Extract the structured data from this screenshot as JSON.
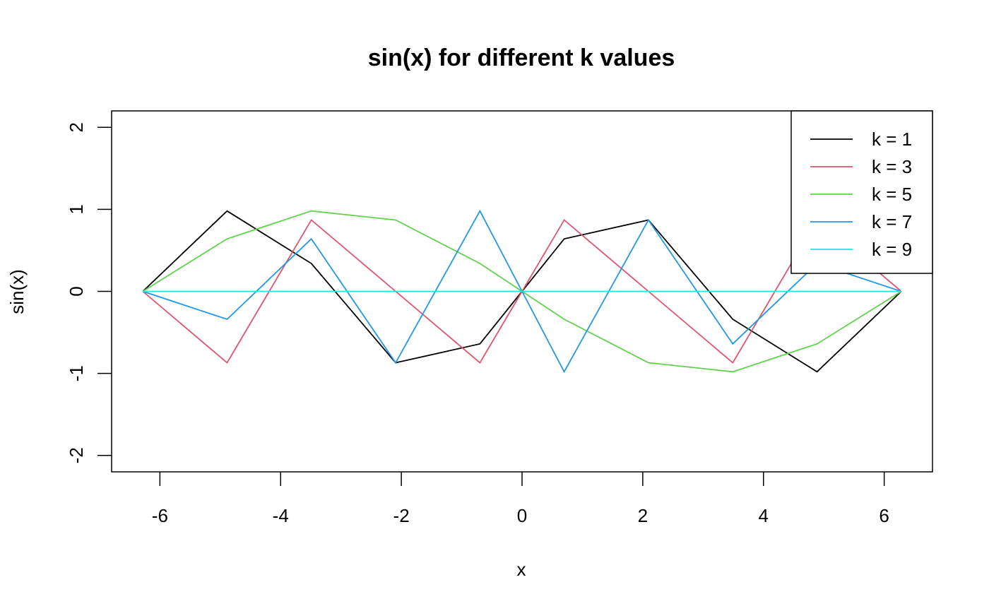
{
  "chart_data": {
    "type": "line",
    "title": "sin(x) for different k values",
    "xlabel": "x",
    "ylabel": "sin(x)",
    "xlim": [
      -6.8,
      6.8
    ],
    "ylim": [
      -2.2,
      2.2
    ],
    "xticks": [
      -6,
      -4,
      -2,
      0,
      2,
      4,
      6
    ],
    "yticks": [
      -2,
      -1,
      0,
      1,
      2
    ],
    "xtick_labels": [
      "-6",
      "-4",
      "-2",
      "0",
      "2",
      "4",
      "6"
    ],
    "ytick_labels": [
      "-2",
      "-1",
      "0",
      "1",
      "2"
    ],
    "grid": false,
    "legend_position": "top-right",
    "x": [
      -6.283,
      -4.887,
      -3.491,
      -2.094,
      -0.698,
      0,
      0.698,
      2.094,
      3.491,
      4.887,
      6.283
    ],
    "series": [
      {
        "name": "k = 1",
        "color": "#000000",
        "values": [
          0,
          0.98,
          0.34,
          -0.87,
          -0.64,
          0,
          0.64,
          0.87,
          -0.34,
          -0.98,
          0
        ]
      },
      {
        "name": "k = 3",
        "color": "#DF536B",
        "values": [
          0,
          -0.87,
          0.87,
          0,
          -0.87,
          0,
          0.87,
          0,
          -0.87,
          0.87,
          0
        ]
      },
      {
        "name": "k = 5",
        "color": "#61D04F",
        "values": [
          0,
          0.64,
          0.98,
          0.87,
          0.34,
          0,
          -0.34,
          -0.87,
          -0.98,
          -0.64,
          0
        ]
      },
      {
        "name": "k = 7",
        "color": "#2297E6",
        "values": [
          0,
          -0.34,
          0.64,
          -0.87,
          0.98,
          0,
          -0.98,
          0.87,
          -0.64,
          0.34,
          0
        ]
      },
      {
        "name": "k = 9",
        "color": "#28E2E5",
        "values": [
          0,
          0,
          0,
          0,
          0,
          0,
          0,
          0,
          0,
          0,
          0
        ]
      }
    ]
  }
}
